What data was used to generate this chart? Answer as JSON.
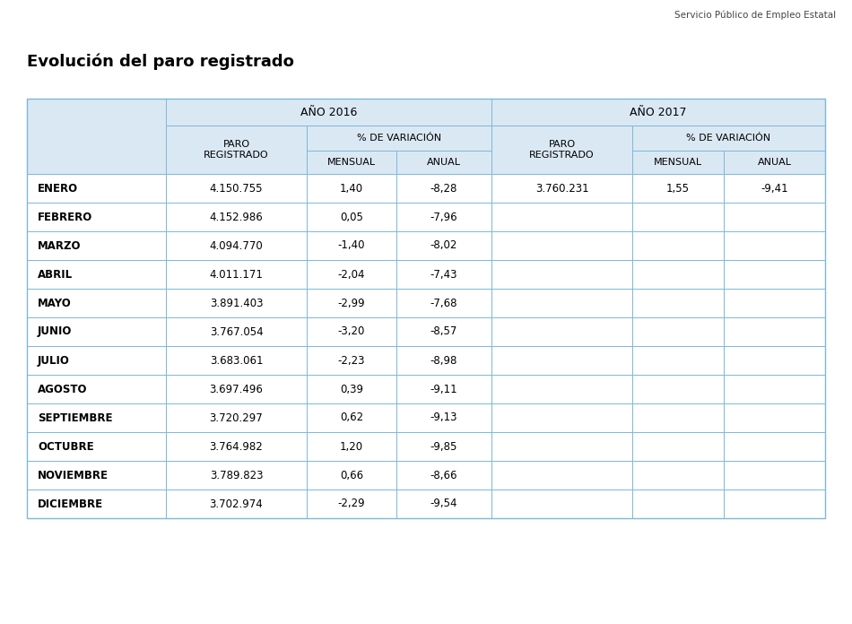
{
  "title": "Evolución del paro registrado",
  "watermark": "Servicio Público de Empleo Estatal",
  "header_bg": "#dae8f4",
  "white": "#ffffff",
  "border_color": "#7db8d8",
  "months": [
    "ENERO",
    "FEBRERO",
    "MARZO",
    "ABRIL",
    "MAYO",
    "JUNIO",
    "JULIO",
    "AGOSTO",
    "SEPTIEMBRE",
    "OCTUBRE",
    "NOVIEMBRE",
    "DICIEMBRE"
  ],
  "col_2016_paro": [
    "4.150.755",
    "4.152.986",
    "4.094.770",
    "4.011.171",
    "3.891.403",
    "3.767.054",
    "3.683.061",
    "3.697.496",
    "3.720.297",
    "3.764.982",
    "3.789.823",
    "3.702.974"
  ],
  "col_2016_mensual": [
    "1,40",
    "0,05",
    "-1,40",
    "-2,04",
    "-2,99",
    "-3,20",
    "-2,23",
    "0,39",
    "0,62",
    "1,20",
    "0,66",
    "-2,29"
  ],
  "col_2016_anual": [
    "-8,28",
    "-7,96",
    "-8,02",
    "-7,43",
    "-7,68",
    "-8,57",
    "-8,98",
    "-9,11",
    "-9,13",
    "-9,85",
    "-8,66",
    "-9,54"
  ],
  "col_2017_paro": [
    "3.760.231",
    "",
    "",
    "",
    "",
    "",
    "",
    "",
    "",
    "",
    "",
    ""
  ],
  "col_2017_mensual": [
    "1,55",
    "",
    "",
    "",
    "",
    "",
    "",
    "",
    "",
    "",
    "",
    ""
  ],
  "col_2017_anual": [
    "-9,41",
    "",
    "",
    "",
    "",
    "",
    "",
    "",
    "",
    "",
    "",
    ""
  ],
  "fig_w": 9.5,
  "fig_h": 6.96,
  "dpi": 100
}
